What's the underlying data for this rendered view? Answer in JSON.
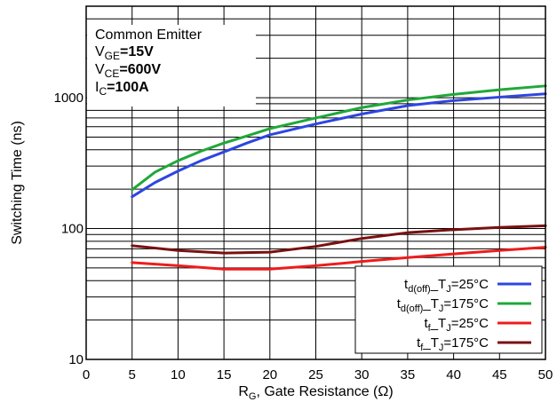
{
  "chart_data": {
    "type": "line",
    "xlabel": {
      "main": "R",
      "sub": "G",
      "rest": ", Gate Resistance (Ω)"
    },
    "ylabel": "Switching Time (ns)",
    "xlim": [
      0,
      50
    ],
    "ylim": [
      10,
      5000
    ],
    "yscale": "log",
    "x_ticks": [
      0,
      5,
      10,
      15,
      20,
      25,
      30,
      35,
      40,
      45,
      50
    ],
    "y_tick_labels": [
      10,
      100,
      1000
    ],
    "grid": true,
    "conditions": {
      "title": "Common Emitter",
      "lines": [
        {
          "main": "V",
          "sub": "GE",
          "value": "=15V"
        },
        {
          "main": "V",
          "sub": "CE",
          "value": "=600V"
        },
        {
          "main": "I",
          "sub": "C",
          "value": "=100A"
        }
      ]
    },
    "legend_position": "bottom-right",
    "series": [
      {
        "name": {
          "main": "t",
          "sub": "d(off)",
          "tail": "_T",
          "sub2": "J",
          "value": "=25°C"
        },
        "color": "#2d46e0",
        "x": [
          5,
          7.5,
          10,
          12.5,
          15,
          17.5,
          20,
          25,
          30,
          35,
          40,
          45,
          50
        ],
        "y": [
          175,
          225,
          275,
          330,
          385,
          450,
          520,
          630,
          750,
          870,
          950,
          1010,
          1070
        ]
      },
      {
        "name": {
          "main": "t",
          "sub": "d(off)",
          "tail": "_T",
          "sub2": "J",
          "value": "=175°C"
        },
        "color": "#1fa83a",
        "x": [
          5,
          7.5,
          10,
          12.5,
          15,
          17.5,
          20,
          25,
          30,
          35,
          40,
          45,
          50
        ],
        "y": [
          198,
          270,
          330,
          390,
          450,
          510,
          580,
          700,
          840,
          960,
          1060,
          1150,
          1230
        ]
      },
      {
        "name": {
          "main": "t",
          "sub": "f",
          "tail": "_T",
          "sub2": "J",
          "value": "=25°C"
        },
        "color": "#ee1c1c",
        "x": [
          5,
          10,
          15,
          20,
          25,
          30,
          35,
          40,
          45,
          50
        ],
        "y": [
          55,
          52,
          49,
          49,
          52,
          56,
          60,
          64,
          68,
          72
        ]
      },
      {
        "name": {
          "main": "t",
          "sub": "f",
          "tail": "_T",
          "sub2": "J",
          "value": "=175°C"
        },
        "color": "#7a1010",
        "x": [
          5,
          10,
          15,
          20,
          25,
          30,
          35,
          40,
          45,
          50
        ],
        "y": [
          74,
          68,
          65,
          66,
          73,
          84,
          93,
          98,
          102,
          105
        ]
      }
    ]
  }
}
